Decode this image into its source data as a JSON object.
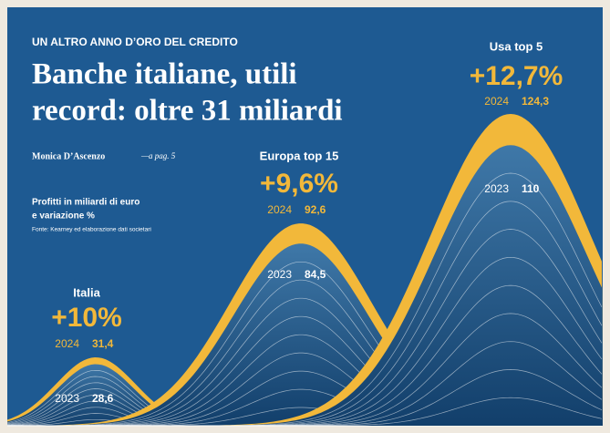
{
  "header": {
    "kicker": "UN ALTRO ANNO D’ORO DEL CREDITO",
    "title_lines": [
      "Banche italiane, utili",
      "record: oltre 31 miliardi"
    ],
    "byline": "Monica D’Ascenzo",
    "page_ref": "—a pag. 5",
    "subtitle_lines": [
      "Profitti in miliardi di euro",
      "e variazione %"
    ],
    "source": "Fonte: Kearney ed elaborazione dati societari"
  },
  "groups": [
    {
      "name": "Italia",
      "change": "+10%",
      "year_new": "2024",
      "value_new": "31,4",
      "year_old": "2023",
      "value_old": "28,6"
    },
    {
      "name": "Europa  top 15",
      "change": "+9,6%",
      "year_new": "2024",
      "value_new": "92,6",
      "year_old": "2023",
      "value_old": "84,5"
    },
    {
      "name": "Usa top 5",
      "change": "+12,7%",
      "year_new": "2024",
      "value_new": "124,3",
      "year_old": "2023",
      "value_old": "110"
    }
  ]
}
